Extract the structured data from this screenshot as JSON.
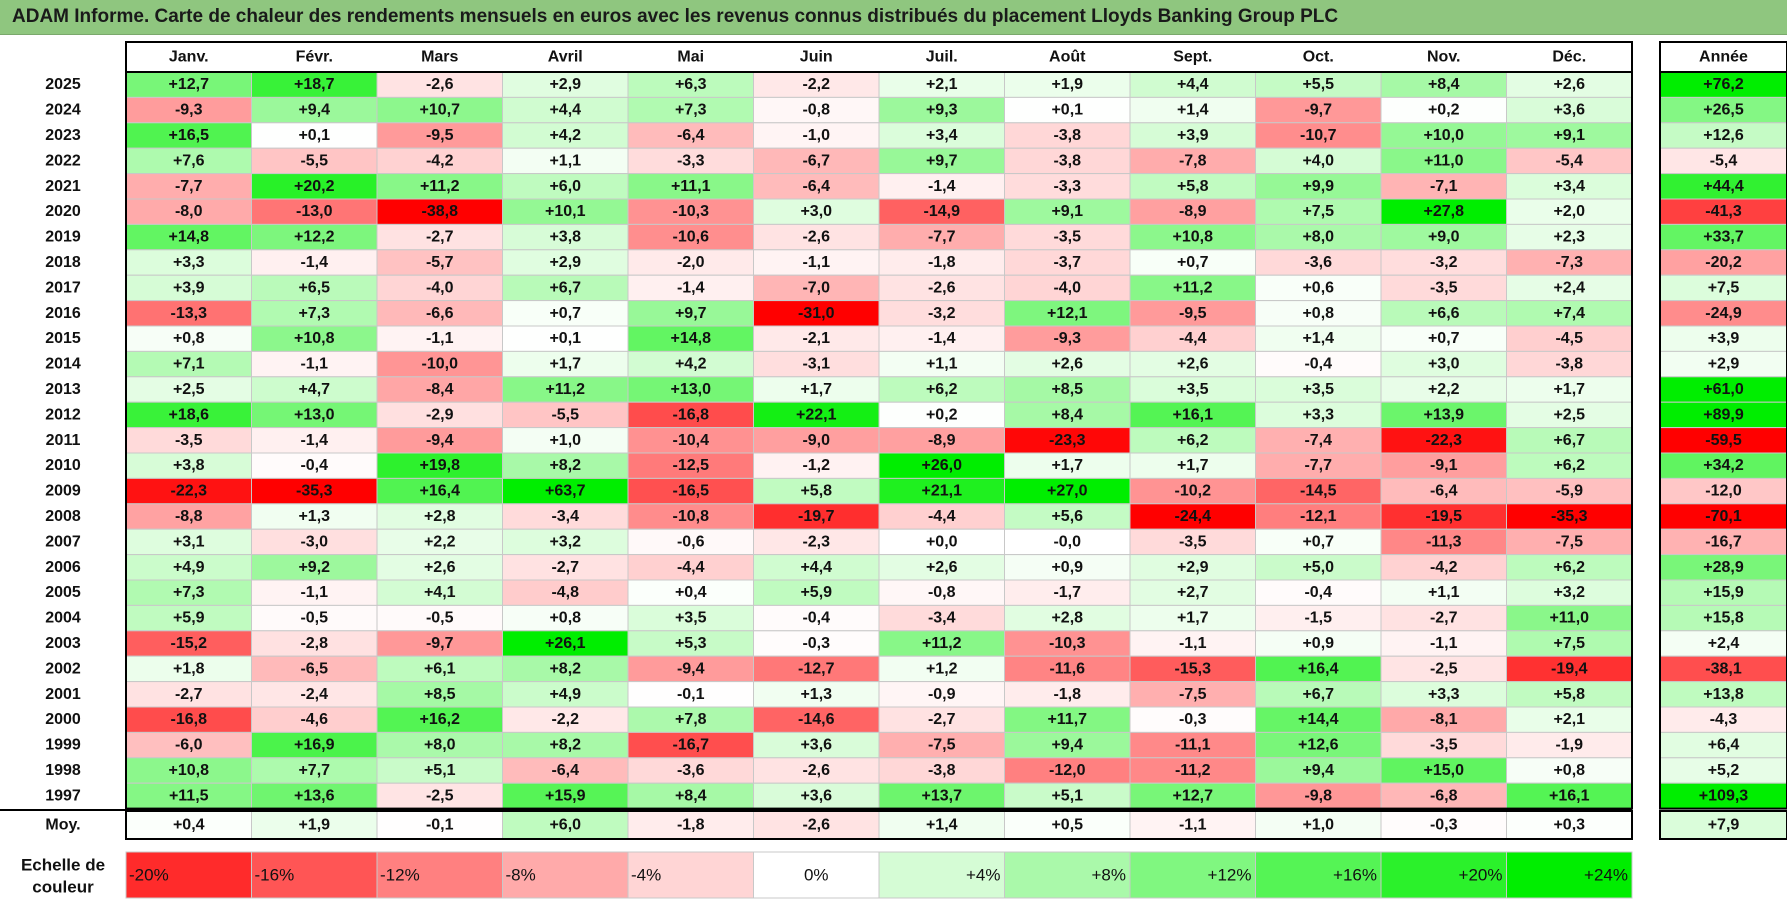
{
  "title": "ADAM Informe. Carte de chaleur des rendements mensuels en euros avec les revenus connus distribués du placement Lloyds Banking Group PLC",
  "chart_data": {
    "type": "heatmap",
    "months": [
      "Janv.",
      "Févr.",
      "Mars",
      "Avril",
      "Mai",
      "Juin",
      "Juil.",
      "Août",
      "Sept.",
      "Oct.",
      "Nov.",
      "Déc."
    ],
    "annual_header": "Année",
    "years": [
      "2025",
      "2024",
      "2023",
      "2022",
      "2021",
      "2020",
      "2019",
      "2018",
      "2017",
      "2016",
      "2015",
      "2014",
      "2013",
      "2012",
      "2011",
      "2010",
      "2009",
      "2008",
      "2007",
      "2006",
      "2005",
      "2004",
      "2003",
      "2002",
      "2001",
      "2000",
      "1999",
      "1998",
      "1997"
    ],
    "values": [
      [
        "+12,7",
        "+18,7",
        "-2,6",
        "+2,9",
        "+6,3",
        "-2,2",
        "+2,1",
        "+1,9",
        "+4,4",
        "+5,5",
        "+8,4",
        "+2,6"
      ],
      [
        "-9,3",
        "+9,4",
        "+10,7",
        "+4,4",
        "+7,3",
        "-0,8",
        "+9,3",
        "+0,1",
        "+1,4",
        "-9,7",
        "+0,2",
        "+3,6"
      ],
      [
        "+16,5",
        "+0,1",
        "-9,5",
        "+4,2",
        "-6,4",
        "-1,0",
        "+3,4",
        "-3,8",
        "+3,9",
        "-10,7",
        "+10,0",
        "+9,1"
      ],
      [
        "+7,6",
        "-5,5",
        "-4,2",
        "+1,1",
        "-3,3",
        "-6,7",
        "+9,7",
        "-3,8",
        "-7,8",
        "+4,0",
        "+11,0",
        "-5,4"
      ],
      [
        "-7,7",
        "+20,2",
        "+11,2",
        "+6,0",
        "+11,1",
        "-6,4",
        "-1,4",
        "-3,3",
        "+5,8",
        "+9,9",
        "-7,1",
        "+3,4"
      ],
      [
        "-8,0",
        "-13,0",
        "-38,8",
        "+10,1",
        "-10,3",
        "+3,0",
        "-14,9",
        "+9,1",
        "-8,9",
        "+7,5",
        "+27,8",
        "+2,0"
      ],
      [
        "+14,8",
        "+12,2",
        "-2,7",
        "+3,8",
        "-10,6",
        "-2,6",
        "-7,7",
        "-3,5",
        "+10,8",
        "+8,0",
        "+9,0",
        "+2,3"
      ],
      [
        "+3,3",
        "-1,4",
        "-5,7",
        "+2,9",
        "-2,0",
        "-1,1",
        "-1,8",
        "-3,7",
        "+0,7",
        "-3,6",
        "-3,2",
        "-7,3"
      ],
      [
        "+3,9",
        "+6,5",
        "-4,0",
        "+6,7",
        "-1,4",
        "-7,0",
        "-2,6",
        "-4,0",
        "+11,2",
        "+0,6",
        "-3,5",
        "+2,4"
      ],
      [
        "-13,3",
        "+7,3",
        "-6,6",
        "+0,7",
        "+9,7",
        "-31,0",
        "-3,2",
        "+12,1",
        "-9,5",
        "+0,8",
        "+6,6",
        "+7,4"
      ],
      [
        "+0,8",
        "+10,8",
        "-1,1",
        "+0,1",
        "+14,8",
        "-2,1",
        "-1,4",
        "-9,3",
        "-4,4",
        "+1,4",
        "+0,7",
        "-4,5"
      ],
      [
        "+7,1",
        "-1,1",
        "-10,0",
        "+1,7",
        "+4,2",
        "-3,1",
        "+1,1",
        "+2,6",
        "+2,6",
        "-0,4",
        "+3,0",
        "-3,8"
      ],
      [
        "+2,5",
        "+4,7",
        "-8,4",
        "+11,2",
        "+13,0",
        "+1,7",
        "+6,2",
        "+8,5",
        "+3,5",
        "+3,5",
        "+2,2",
        "+1,7"
      ],
      [
        "+18,6",
        "+13,0",
        "-2,9",
        "-5,5",
        "-16,8",
        "+22,1",
        "+0,2",
        "+8,4",
        "+16,1",
        "+3,3",
        "+13,9",
        "+2,5"
      ],
      [
        "-3,5",
        "-1,4",
        "-9,4",
        "+1,0",
        "-10,4",
        "-9,0",
        "-8,9",
        "-23,3",
        "+6,2",
        "-7,4",
        "-22,3",
        "+6,7"
      ],
      [
        "+3,8",
        "-0,4",
        "+19,8",
        "+8,2",
        "-12,5",
        "-1,2",
        "+26,0",
        "+1,7",
        "+1,7",
        "-7,7",
        "-9,1",
        "+6,2"
      ],
      [
        "-22,3",
        "-35,3",
        "+16,4",
        "+63,7",
        "-16,5",
        "+5,8",
        "+21,1",
        "+27,0",
        "-10,2",
        "-14,5",
        "-6,4",
        "-5,9"
      ],
      [
        "-8,8",
        "+1,3",
        "+2,8",
        "-3,4",
        "-10,8",
        "-19,7",
        "-4,4",
        "+5,6",
        "-24,4",
        "-12,1",
        "-19,5",
        "-35,3"
      ],
      [
        "+3,1",
        "-3,0",
        "+2,2",
        "+3,2",
        "-0,6",
        "-2,3",
        "+0,0",
        "-0,0",
        "-3,5",
        "+0,7",
        "-11,3",
        "-7,5"
      ],
      [
        "+4,9",
        "+9,2",
        "+2,6",
        "-2,7",
        "-4,4",
        "+4,4",
        "+2,6",
        "+0,9",
        "+2,9",
        "+5,0",
        "-4,2",
        "+6,2"
      ],
      [
        "+7,3",
        "-1,1",
        "+4,1",
        "-4,8",
        "+0,4",
        "+5,9",
        "-0,8",
        "-1,7",
        "+2,7",
        "-0,4",
        "+1,1",
        "+3,2"
      ],
      [
        "+5,9",
        "-0,5",
        "-0,5",
        "+0,8",
        "+3,5",
        "-0,4",
        "-3,4",
        "+2,8",
        "+1,7",
        "-1,5",
        "-2,7",
        "+11,0"
      ],
      [
        "-15,2",
        "-2,8",
        "-9,7",
        "+26,1",
        "+5,3",
        "-0,3",
        "+11,2",
        "-10,3",
        "-1,1",
        "+0,9",
        "-1,1",
        "+7,5"
      ],
      [
        "+1,8",
        "-6,5",
        "+6,1",
        "+8,2",
        "-9,4",
        "-12,7",
        "+1,2",
        "-11,6",
        "-15,3",
        "+16,4",
        "-2,5",
        "-19,4"
      ],
      [
        "-2,7",
        "-2,4",
        "+8,5",
        "+4,9",
        "-0,1",
        "+1,3",
        "-0,9",
        "-1,8",
        "-7,5",
        "+6,7",
        "+3,3",
        "+5,8"
      ],
      [
        "-16,8",
        "-4,6",
        "+16,2",
        "-2,2",
        "+7,8",
        "-14,6",
        "-2,7",
        "+11,7",
        "-0,3",
        "+14,4",
        "-8,1",
        "+2,1"
      ],
      [
        "-6,0",
        "+16,9",
        "+8,0",
        "+8,2",
        "-16,7",
        "+3,6",
        "-7,5",
        "+9,4",
        "-11,1",
        "+12,6",
        "-3,5",
        "-1,9"
      ],
      [
        "+10,8",
        "+7,7",
        "+5,1",
        "-6,4",
        "-3,6",
        "-2,6",
        "-3,8",
        "-12,0",
        "-11,2",
        "+9,4",
        "+15,0",
        "+0,8"
      ],
      [
        "+11,5",
        "+13,6",
        "-2,5",
        "+15,9",
        "+8,4",
        "+3,6",
        "+13,7",
        "+5,1",
        "+12,7",
        "-9,8",
        "-6,8",
        "+16,1"
      ]
    ],
    "annual": [
      "+76,2",
      "+26,5",
      "+12,6",
      "-5,4",
      "+44,4",
      "-41,3",
      "+33,7",
      "-20,2",
      "+7,5",
      "-24,9",
      "+3,9",
      "+2,9",
      "+61,0",
      "+89,9",
      "-59,5",
      "+34,2",
      "-12,0",
      "-70,1",
      "-16,7",
      "+28,9",
      "+15,9",
      "+15,8",
      "+2,4",
      "-38,1",
      "+13,8",
      "-4,3",
      "+6,4",
      "+5,2",
      "+109,3"
    ],
    "average_label": "Moy.",
    "average": [
      "+0,4",
      "+1,9",
      "-0,1",
      "+6,0",
      "-1,8",
      "-2,6",
      "+1,4",
      "+0,5",
      "-1,1",
      "+1,0",
      "-0,3",
      "+0,3"
    ],
    "average_annual": "+7,9",
    "scale_label": [
      "Echelle de",
      "couleur"
    ],
    "scale": [
      {
        "label": "-20%",
        "value": -20
      },
      {
        "label": "-16%",
        "value": -16
      },
      {
        "label": "-12%",
        "value": -12
      },
      {
        "label": "-8%",
        "value": -8
      },
      {
        "label": "-4%",
        "value": -4
      },
      {
        "label": "0%",
        "value": 0
      },
      {
        "label": "+4%",
        "value": 4
      },
      {
        "label": "+8%",
        "value": 8
      },
      {
        "label": "+12%",
        "value": 12
      },
      {
        "label": "+16%",
        "value": 16
      },
      {
        "label": "+20%",
        "value": 20
      },
      {
        "label": "+24%",
        "value": 24
      }
    ],
    "colors": {
      "negative_max": "#ff0000",
      "neutral": "#ffffff",
      "positive_max": "#00ee00",
      "title_bar": "#8fc67f"
    }
  }
}
